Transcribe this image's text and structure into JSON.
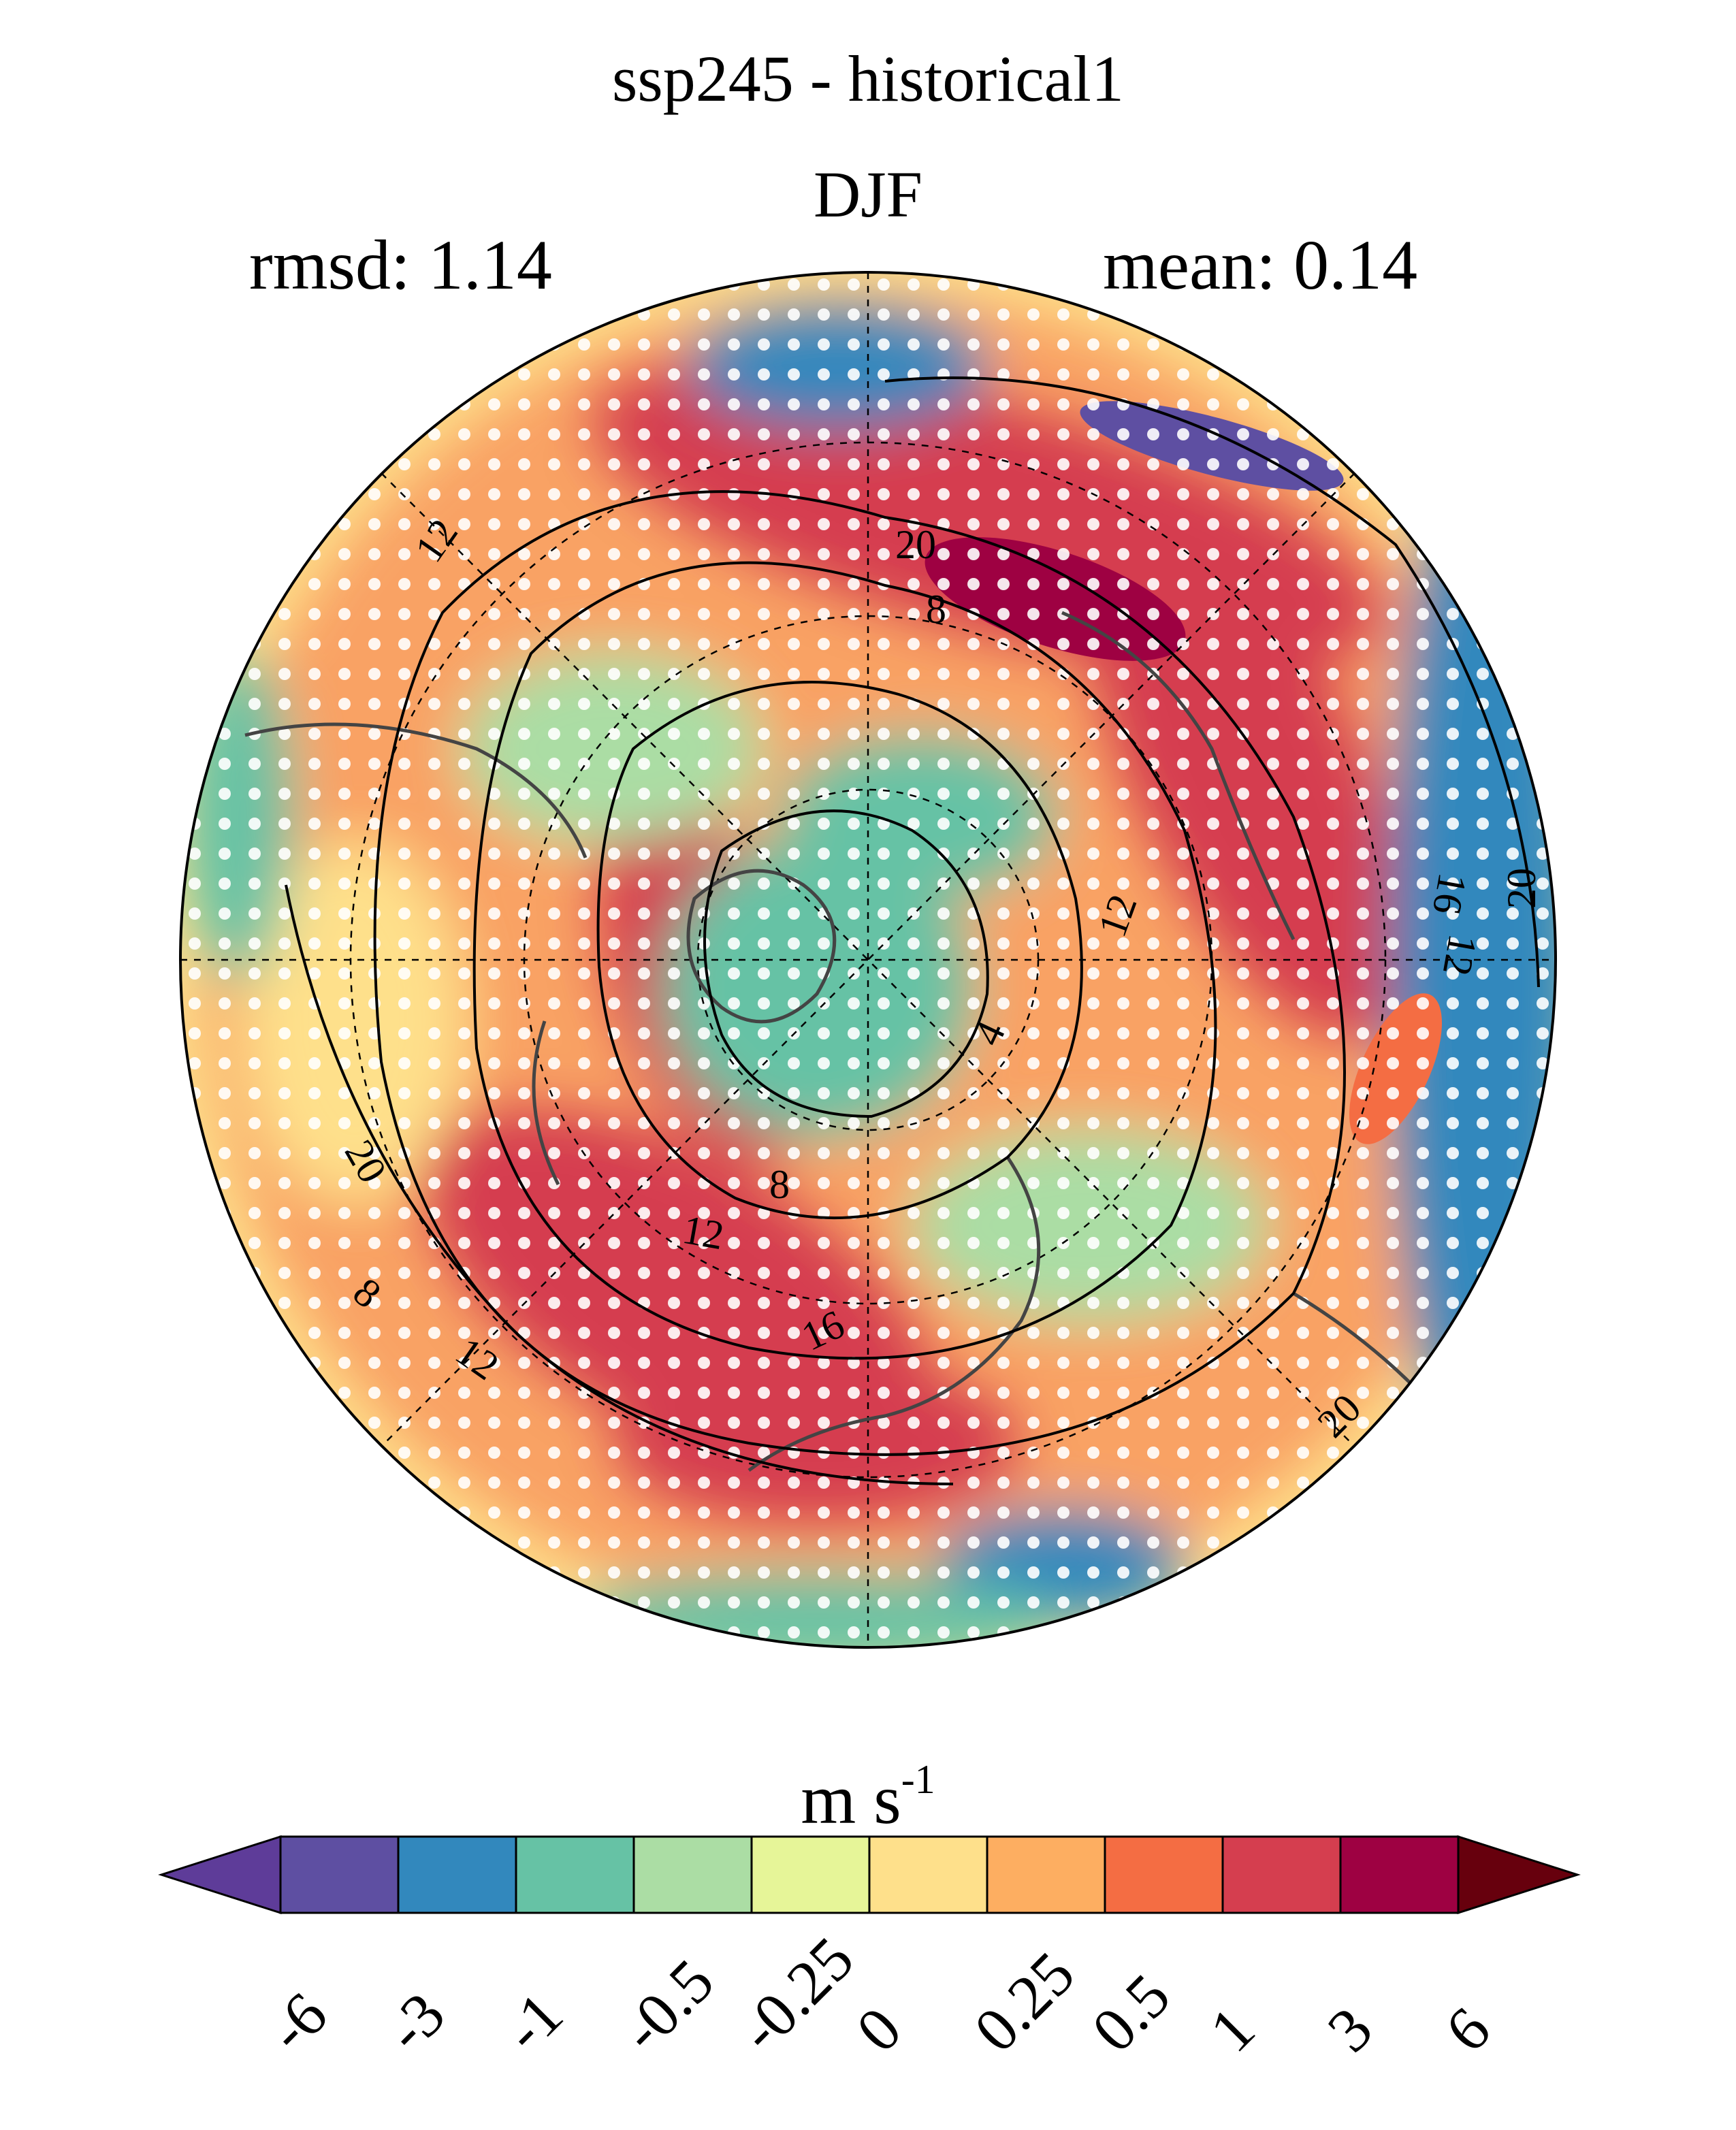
{
  "title": {
    "line1": "ssp245 - historical1",
    "line2": "DJF"
  },
  "stats": {
    "rmsd": "rmsd: 1.14",
    "mean": "mean: 0.14"
  },
  "colorbar": {
    "units_base": "m s",
    "units_exp": "-1",
    "levels": [
      "-6",
      "-3",
      "-1",
      "-0.5",
      "-0.25",
      "0",
      "0.25",
      "0.5",
      "1",
      "3",
      "6"
    ],
    "colors": [
      "#5e4fa2",
      "#3288bd",
      "#66c2a5",
      "#abdda4",
      "#e6f598",
      "#fee08b",
      "#fdae61",
      "#f46d43",
      "#d53e4f",
      "#9e0142"
    ],
    "under_color": "#5e3c99",
    "over_color": "#67000d"
  },
  "contour_labels": [
    "12",
    "20",
    "8",
    "12",
    "4",
    "8",
    "12",
    "16",
    "20",
    "8",
    "12",
    "20",
    "20",
    "16",
    "12"
  ]
}
